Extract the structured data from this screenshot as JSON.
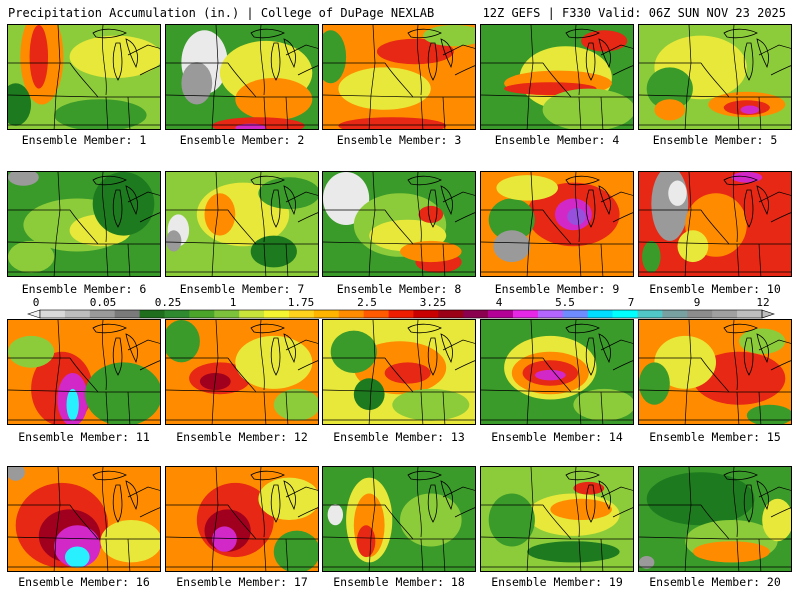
{
  "header": {
    "title": "Precipitation Accumulation (in.) | College of DuPage NEXLAB",
    "run_info": "12Z GEFS | F330 Valid: 06Z SUN NOV 23 2025"
  },
  "members": [
    {
      "label": "Ensemble Member: 1"
    },
    {
      "label": "Ensemble Member: 2"
    },
    {
      "label": "Ensemble Member: 3"
    },
    {
      "label": "Ensemble Member: 4"
    },
    {
      "label": "Ensemble Member: 5"
    },
    {
      "label": "Ensemble Member: 6"
    },
    {
      "label": "Ensemble Member: 7"
    },
    {
      "label": "Ensemble Member: 8"
    },
    {
      "label": "Ensemble Member: 9"
    },
    {
      "label": "Ensemble Member: 10"
    },
    {
      "label": "Ensemble Member: 11"
    },
    {
      "label": "Ensemble Member: 12"
    },
    {
      "label": "Ensemble Member: 13"
    },
    {
      "label": "Ensemble Member: 14"
    },
    {
      "label": "Ensemble Member: 15"
    },
    {
      "label": "Ensemble Member: 16"
    },
    {
      "label": "Ensemble Member: 17"
    },
    {
      "label": "Ensemble Member: 18"
    },
    {
      "label": "Ensemble Member: 19"
    },
    {
      "label": "Ensemble Member: 20"
    }
  ],
  "colorbar": {
    "tick_labels": [
      "0",
      "0.05",
      "0.25",
      "1",
      "1.75",
      "2.5",
      "3.25",
      "4",
      "5.5",
      "7",
      "9",
      "12"
    ],
    "colors": [
      "#d9d9d9",
      "#bdbdbd",
      "#9a9a9a",
      "#7a7a7a",
      "#1e6e1e",
      "#2f8a2f",
      "#4aa52a",
      "#7cc23a",
      "#c8e33a",
      "#f5f532",
      "#ffd21e",
      "#ffb400",
      "#ff8c00",
      "#ff5a00",
      "#f01e00",
      "#c80000",
      "#9a0016",
      "#8c0050",
      "#b40096",
      "#e628e6",
      "#b464ff",
      "#6e8cff",
      "#00dcff",
      "#00ffff",
      "#50c8c8",
      "#78a0a0",
      "#8c8c8c",
      "#a0a0a0",
      "#bebebe"
    ]
  },
  "palette": {
    "dark_green": "#1e7a1e",
    "green": "#3a9a2a",
    "lime": "#8ccc3a",
    "yellow": "#e8e83a",
    "gold": "#ffc81e",
    "orange": "#ff8c00",
    "red": "#e62814",
    "darkred": "#a0001e",
    "magenta": "#d228c8",
    "violet": "#9650dc",
    "cyan": "#28f0ff",
    "gray": "#9a9a9a",
    "white": "#eaeaea"
  },
  "panel_fields": [
    {
      "bg": "lime",
      "blobs": [
        [
          "orange",
          0.22,
          0.3,
          0.14,
          0.45
        ],
        [
          "red",
          0.2,
          0.3,
          0.06,
          0.3
        ],
        [
          "yellow",
          0.7,
          0.3,
          0.3,
          0.2
        ],
        [
          "dark_green",
          0.05,
          0.75,
          0.1,
          0.2
        ],
        [
          "green",
          0.6,
          0.85,
          0.3,
          0.15
        ]
      ]
    },
    {
      "bg": "green",
      "blobs": [
        [
          "white",
          0.25,
          0.35,
          0.15,
          0.3
        ],
        [
          "gray",
          0.2,
          0.55,
          0.1,
          0.2
        ],
        [
          "yellow",
          0.65,
          0.45,
          0.3,
          0.3
        ],
        [
          "orange",
          0.7,
          0.7,
          0.25,
          0.2
        ],
        [
          "red",
          0.6,
          0.95,
          0.3,
          0.08
        ],
        [
          "magenta",
          0.55,
          0.97,
          0.1,
          0.04
        ]
      ]
    },
    {
      "bg": "orange",
      "blobs": [
        [
          "yellow",
          0.4,
          0.6,
          0.3,
          0.2
        ],
        [
          "red",
          0.45,
          0.95,
          0.35,
          0.08
        ],
        [
          "red",
          0.6,
          0.25,
          0.25,
          0.12
        ],
        [
          "green",
          0.05,
          0.3,
          0.1,
          0.25
        ],
        [
          "lime",
          0.85,
          0.1,
          0.2,
          0.1
        ]
      ]
    },
    {
      "bg": "green",
      "blobs": [
        [
          "yellow",
          0.55,
          0.5,
          0.3,
          0.3
        ],
        [
          "orange",
          0.5,
          0.55,
          0.35,
          0.12
        ],
        [
          "red",
          0.45,
          0.6,
          0.3,
          0.06
        ],
        [
          "red",
          0.8,
          0.15,
          0.15,
          0.1
        ],
        [
          "lime",
          0.7,
          0.8,
          0.3,
          0.2
        ]
      ]
    },
    {
      "bg": "lime",
      "blobs": [
        [
          "yellow",
          0.4,
          0.4,
          0.3,
          0.3
        ],
        [
          "orange",
          0.7,
          0.75,
          0.25,
          0.12
        ],
        [
          "red",
          0.7,
          0.78,
          0.15,
          0.07
        ],
        [
          "magenta",
          0.72,
          0.8,
          0.06,
          0.04
        ],
        [
          "green",
          0.2,
          0.6,
          0.15,
          0.2
        ],
        [
          "orange",
          0.2,
          0.8,
          0.1,
          0.1
        ]
      ]
    },
    {
      "bg": "green",
      "blobs": [
        [
          "lime",
          0.45,
          0.5,
          0.35,
          0.25
        ],
        [
          "yellow",
          0.6,
          0.55,
          0.2,
          0.15
        ],
        [
          "dark_green",
          0.75,
          0.3,
          0.2,
          0.3
        ],
        [
          "gray",
          0.1,
          0.05,
          0.1,
          0.08
        ],
        [
          "lime",
          0.15,
          0.8,
          0.15,
          0.15
        ]
      ]
    },
    {
      "bg": "lime",
      "blobs": [
        [
          "yellow",
          0.5,
          0.4,
          0.3,
          0.3
        ],
        [
          "orange",
          0.35,
          0.4,
          0.1,
          0.2
        ],
        [
          "white",
          0.08,
          0.55,
          0.07,
          0.15
        ],
        [
          "gray",
          0.05,
          0.65,
          0.05,
          0.1
        ],
        [
          "dark_green",
          0.7,
          0.75,
          0.15,
          0.15
        ],
        [
          "green",
          0.8,
          0.2,
          0.2,
          0.15
        ]
      ]
    },
    {
      "bg": "green",
      "blobs": [
        [
          "white",
          0.15,
          0.25,
          0.15,
          0.25
        ],
        [
          "lime",
          0.5,
          0.5,
          0.3,
          0.3
        ],
        [
          "yellow",
          0.55,
          0.6,
          0.25,
          0.15
        ],
        [
          "red",
          0.75,
          0.85,
          0.15,
          0.1
        ],
        [
          "orange",
          0.7,
          0.75,
          0.2,
          0.1
        ],
        [
          "red",
          0.7,
          0.4,
          0.08,
          0.08
        ]
      ]
    },
    {
      "bg": "orange",
      "blobs": [
        [
          "red",
          0.6,
          0.4,
          0.3,
          0.3
        ],
        [
          "magenta",
          0.6,
          0.4,
          0.12,
          0.15
        ],
        [
          "violet",
          0.62,
          0.42,
          0.06,
          0.08
        ],
        [
          "green",
          0.2,
          0.45,
          0.15,
          0.2
        ],
        [
          "gray",
          0.2,
          0.7,
          0.12,
          0.15
        ],
        [
          "yellow",
          0.3,
          0.15,
          0.2,
          0.12
        ]
      ]
    },
    {
      "bg": "red",
      "blobs": [
        [
          "gray",
          0.2,
          0.3,
          0.12,
          0.35
        ],
        [
          "white",
          0.25,
          0.2,
          0.06,
          0.12
        ],
        [
          "orange",
          0.5,
          0.5,
          0.2,
          0.3
        ],
        [
          "magenta",
          0.7,
          0.05,
          0.1,
          0.05
        ],
        [
          "yellow",
          0.35,
          0.7,
          0.1,
          0.15
        ],
        [
          "green",
          0.08,
          0.8,
          0.06,
          0.15
        ]
      ]
    },
    {
      "bg": "orange",
      "blobs": [
        [
          "red",
          0.35,
          0.65,
          0.2,
          0.35
        ],
        [
          "magenta",
          0.42,
          0.75,
          0.1,
          0.25
        ],
        [
          "cyan",
          0.42,
          0.8,
          0.04,
          0.15
        ],
        [
          "green",
          0.75,
          0.7,
          0.25,
          0.3
        ],
        [
          "lime",
          0.15,
          0.3,
          0.15,
          0.15
        ]
      ]
    },
    {
      "bg": "orange",
      "blobs": [
        [
          "red",
          0.35,
          0.55,
          0.2,
          0.15
        ],
        [
          "darkred",
          0.32,
          0.58,
          0.1,
          0.08
        ],
        [
          "green",
          0.1,
          0.2,
          0.12,
          0.2
        ],
        [
          "yellow",
          0.7,
          0.4,
          0.25,
          0.25
        ],
        [
          "lime",
          0.85,
          0.8,
          0.15,
          0.15
        ]
      ]
    },
    {
      "bg": "yellow",
      "blobs": [
        [
          "orange",
          0.5,
          0.45,
          0.3,
          0.25
        ],
        [
          "red",
          0.55,
          0.5,
          0.15,
          0.1
        ],
        [
          "green",
          0.2,
          0.3,
          0.15,
          0.2
        ],
        [
          "lime",
          0.7,
          0.8,
          0.25,
          0.15
        ],
        [
          "dark_green",
          0.3,
          0.7,
          0.1,
          0.15
        ]
      ]
    },
    {
      "bg": "green",
      "blobs": [
        [
          "yellow",
          0.45,
          0.45,
          0.3,
          0.3
        ],
        [
          "orange",
          0.45,
          0.5,
          0.25,
          0.2
        ],
        [
          "red",
          0.45,
          0.5,
          0.18,
          0.12
        ],
        [
          "magenta",
          0.45,
          0.52,
          0.1,
          0.05
        ],
        [
          "lime",
          0.8,
          0.8,
          0.2,
          0.15
        ]
      ]
    },
    {
      "bg": "orange",
      "blobs": [
        [
          "red",
          0.65,
          0.55,
          0.3,
          0.25
        ],
        [
          "yellow",
          0.3,
          0.4,
          0.2,
          0.25
        ],
        [
          "green",
          0.1,
          0.6,
          0.1,
          0.2
        ],
        [
          "lime",
          0.8,
          0.2,
          0.15,
          0.12
        ],
        [
          "green",
          0.85,
          0.9,
          0.15,
          0.1
        ]
      ]
    },
    {
      "bg": "orange",
      "blobs": [
        [
          "red",
          0.35,
          0.55,
          0.3,
          0.4
        ],
        [
          "darkred",
          0.4,
          0.65,
          0.2,
          0.25
        ],
        [
          "magenta",
          0.45,
          0.75,
          0.15,
          0.2
        ],
        [
          "cyan",
          0.45,
          0.85,
          0.08,
          0.1
        ],
        [
          "gray",
          0.05,
          0.05,
          0.06,
          0.08
        ],
        [
          "yellow",
          0.8,
          0.7,
          0.2,
          0.2
        ]
      ]
    },
    {
      "bg": "orange",
      "blobs": [
        [
          "red",
          0.45,
          0.5,
          0.25,
          0.35
        ],
        [
          "darkred",
          0.4,
          0.6,
          0.15,
          0.2
        ],
        [
          "magenta",
          0.38,
          0.68,
          0.08,
          0.12
        ],
        [
          "yellow",
          0.8,
          0.3,
          0.2,
          0.2
        ],
        [
          "green",
          0.85,
          0.8,
          0.15,
          0.2
        ]
      ]
    },
    {
      "bg": "green",
      "blobs": [
        [
          "yellow",
          0.3,
          0.5,
          0.15,
          0.4
        ],
        [
          "orange",
          0.3,
          0.55,
          0.1,
          0.3
        ],
        [
          "red",
          0.28,
          0.7,
          0.06,
          0.15
        ],
        [
          "white",
          0.08,
          0.45,
          0.05,
          0.1
        ],
        [
          "lime",
          0.7,
          0.5,
          0.2,
          0.25
        ]
      ]
    },
    {
      "bg": "lime",
      "blobs": [
        [
          "yellow",
          0.6,
          0.45,
          0.3,
          0.2
        ],
        [
          "orange",
          0.65,
          0.4,
          0.2,
          0.1
        ],
        [
          "green",
          0.2,
          0.5,
          0.15,
          0.25
        ],
        [
          "dark_green",
          0.6,
          0.8,
          0.3,
          0.1
        ],
        [
          "red",
          0.7,
          0.2,
          0.1,
          0.06
        ]
      ]
    },
    {
      "bg": "green",
      "blobs": [
        [
          "dark_green",
          0.4,
          0.3,
          0.35,
          0.25
        ],
        [
          "lime",
          0.6,
          0.7,
          0.3,
          0.2
        ],
        [
          "orange",
          0.6,
          0.8,
          0.25,
          0.1
        ],
        [
          "gray",
          0.05,
          0.9,
          0.05,
          0.06
        ],
        [
          "yellow",
          0.9,
          0.5,
          0.1,
          0.2
        ]
      ]
    }
  ]
}
